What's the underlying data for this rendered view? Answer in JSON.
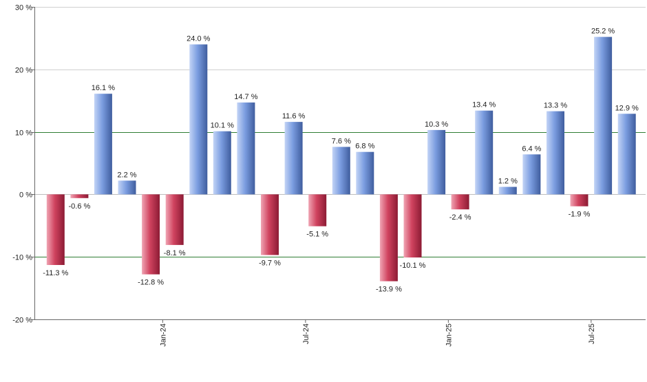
{
  "chart_data": {
    "type": "bar",
    "title": "",
    "xlabel": "",
    "ylabel": "",
    "ylim": [
      -20,
      30
    ],
    "yticks": [
      -20,
      -10,
      0,
      10,
      20,
      30
    ],
    "ytick_labels": [
      "-20 %",
      "-10 %",
      "0 %",
      "10 %",
      "20 %",
      "30 %"
    ],
    "value_suffix": " %",
    "xtick_labels": [
      {
        "label": "Jan-24",
        "after_bar": 5
      },
      {
        "label": "Jul-24",
        "after_bar": 11
      },
      {
        "label": "Jan-25",
        "after_bar": 17
      },
      {
        "label": "Jul-25",
        "after_bar": 23
      }
    ],
    "values": [
      -11.3,
      -0.6,
      16.1,
      2.2,
      -12.8,
      -8.1,
      24.0,
      10.1,
      14.7,
      -9.7,
      11.6,
      -5.1,
      7.6,
      6.8,
      -13.9,
      -10.1,
      10.3,
      -2.4,
      13.4,
      1.2,
      6.4,
      13.3,
      -1.9,
      25.2,
      12.9
    ],
    "data_labels": [
      "-11.3 %",
      "-0.6 %",
      "16.1 %",
      "2.2 %",
      "-12.8 %",
      "-8.1 %",
      "24.0 %",
      "10.1 %",
      "14.7 %",
      "-9.7 %",
      "11.6 %",
      "-5.1 %",
      "7.6 %",
      "6.8 %",
      "-13.9 %",
      "-10.1 %",
      "10.3 %",
      "-2.4 %",
      "13.4 %",
      "1.2 %",
      "6.4 %",
      "13.3 %",
      "-1.9 %",
      "25.2 %",
      "12.9 %"
    ],
    "grid": true,
    "highlight_lines": [
      10,
      -10
    ],
    "colors": {
      "positive": "#7b9de0",
      "positive_dark": "#3f5d9e",
      "positive_light": "#c3d4f6",
      "negative": "#d0435f",
      "negative_dark": "#8c1b34",
      "negative_light": "#f0a5b4",
      "grid": "#cfcfcf",
      "highlight": "#2e7d32",
      "axis": "#666666"
    }
  }
}
